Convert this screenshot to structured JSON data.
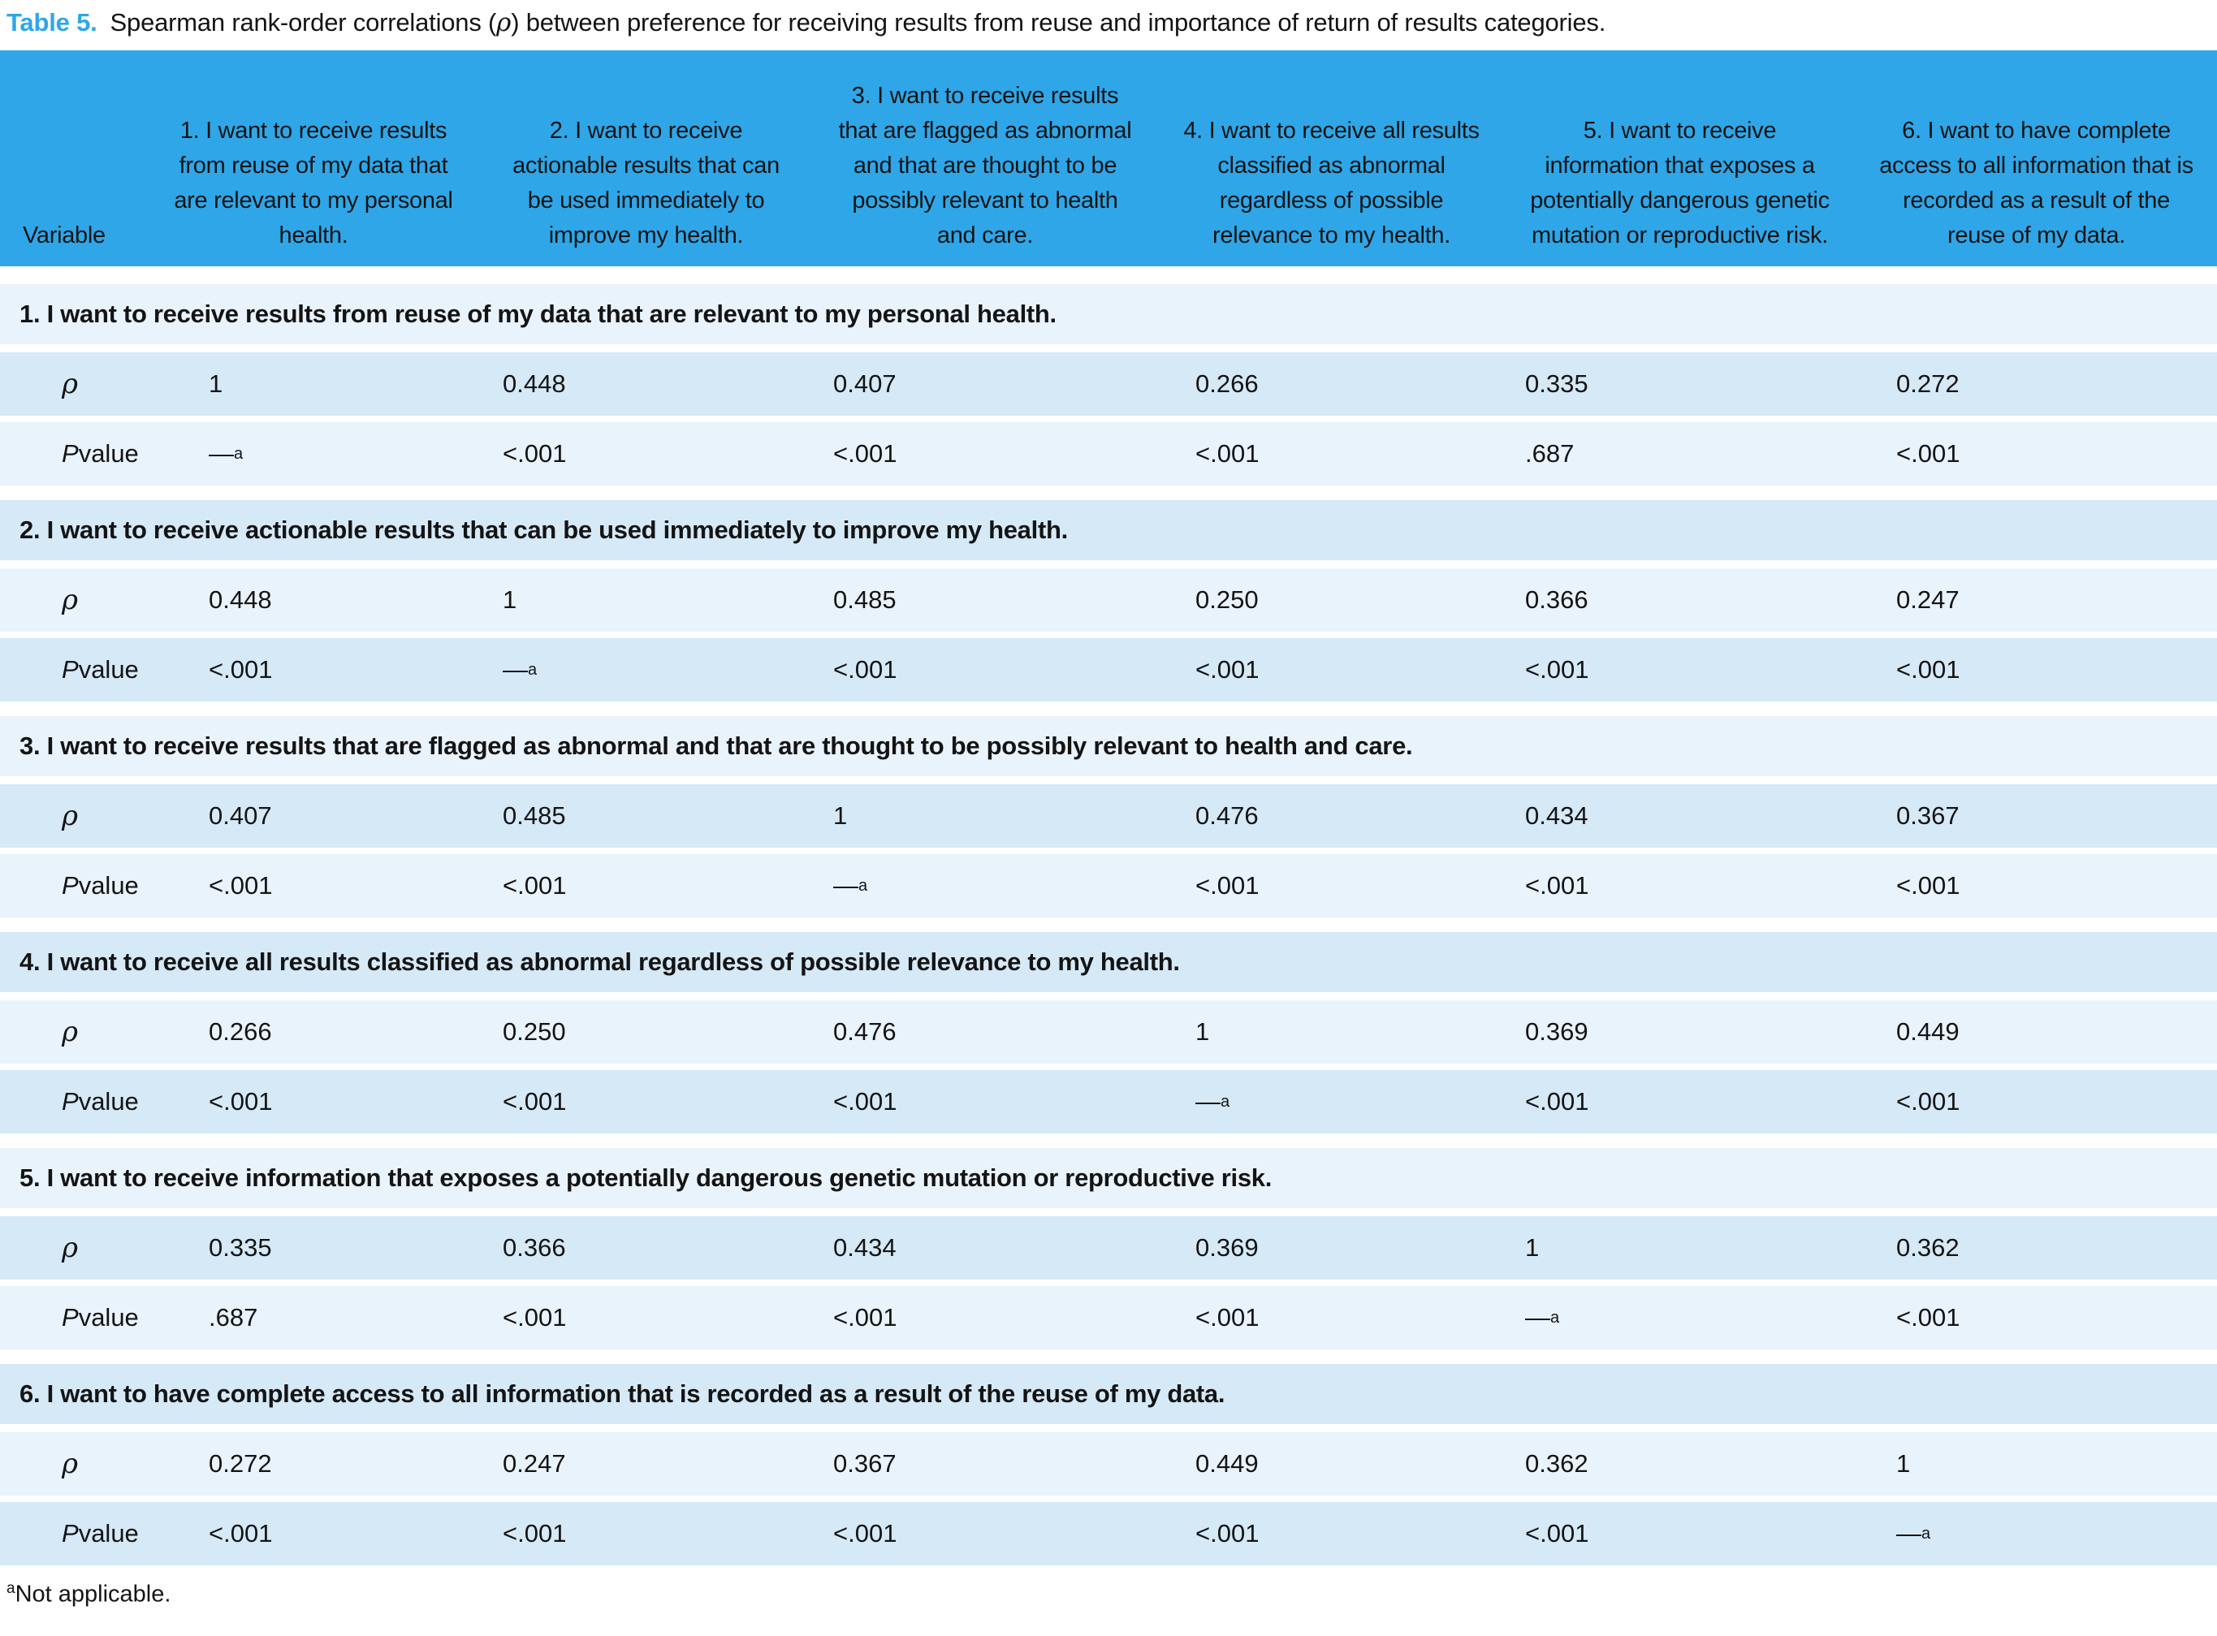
{
  "title": {
    "label": "Table 5.",
    "pre_rho": "Spearman rank-order correlations (",
    "rho": "ρ",
    "post_rho": ") between preference for receiving results from reuse and importance of return of results categories."
  },
  "table": {
    "variable_header": "Variable",
    "column_headers": [
      "1. I want to receive results from reuse of my data that are relevant to my personal health.",
      "2. I want to receive actionable results that can be used immediately to improve my health.",
      "3. I want to receive results that are flagged as abnormal and that are thought to be possibly relevant to health and care.",
      "4. I want to receive all results classified as abnormal regardless of possible relevance to my health.",
      "5. I want to receive information that exposes a potentially dangerous genetic mutation or reproductive risk.",
      "6. I want to have complete access to all information that is recorded as a result of the reuse of my data."
    ],
    "row_labels": {
      "rho": "ρ",
      "p_italic": "P",
      "p_rest": " value"
    },
    "na": {
      "dash": "—",
      "sup": "a"
    },
    "sections": [
      {
        "title": "1. I want to receive results from reuse of my data that are relevant to my personal health.",
        "rho": [
          "1",
          "0.448",
          "0.407",
          "0.266",
          "0.335",
          "0.272"
        ],
        "p": [
          "NA",
          "<.001",
          "<.001",
          "<.001",
          ".687",
          "<.001"
        ]
      },
      {
        "title": "2. I want to receive actionable results that can be used immediately to improve my health.",
        "rho": [
          "0.448",
          "1",
          "0.485",
          "0.250",
          "0.366",
          "0.247"
        ],
        "p": [
          "<.001",
          "NA",
          "<.001",
          "<.001",
          "<.001",
          "<.001"
        ]
      },
      {
        "title": "3. I want to receive results that are flagged as abnormal and that are thought to be possibly relevant to health and care.",
        "rho": [
          "0.407",
          "0.485",
          "1",
          "0.476",
          "0.434",
          "0.367"
        ],
        "p": [
          "<.001",
          "<.001",
          "NA",
          "<.001",
          "<.001",
          "<.001"
        ]
      },
      {
        "title": "4. I want to receive all results classified as abnormal regardless of possible relevance to my health.",
        "rho": [
          "0.266",
          "0.250",
          "0.476",
          "1",
          "0.369",
          "0.449"
        ],
        "p": [
          "<.001",
          "<.001",
          "<.001",
          "NA",
          "<.001",
          "<.001"
        ]
      },
      {
        "title": "5. I want to receive information that exposes a potentially dangerous genetic mutation or reproductive risk.",
        "rho": [
          "0.335",
          "0.366",
          "0.434",
          "0.369",
          "1",
          "0.362"
        ],
        "p": [
          ".687",
          "<.001",
          "<.001",
          "<.001",
          "NA",
          "<.001"
        ]
      },
      {
        "title": "6. I want to have complete access to all information that is recorded as a result of the reuse of my data.",
        "rho": [
          "0.272",
          "0.247",
          "0.367",
          "0.449",
          "0.362",
          "1"
        ],
        "p": [
          "<.001",
          "<.001",
          "<.001",
          "<.001",
          "<.001",
          "NA"
        ]
      }
    ]
  },
  "footnote": {
    "sup": "a",
    "text": "Not applicable."
  },
  "colors": {
    "header_bg": "#2fa6e8",
    "accent_blue": "#2fa6e8",
    "row_light": "#e9f3fb",
    "row_dark": "#d5e9f7",
    "text": "#141414"
  }
}
